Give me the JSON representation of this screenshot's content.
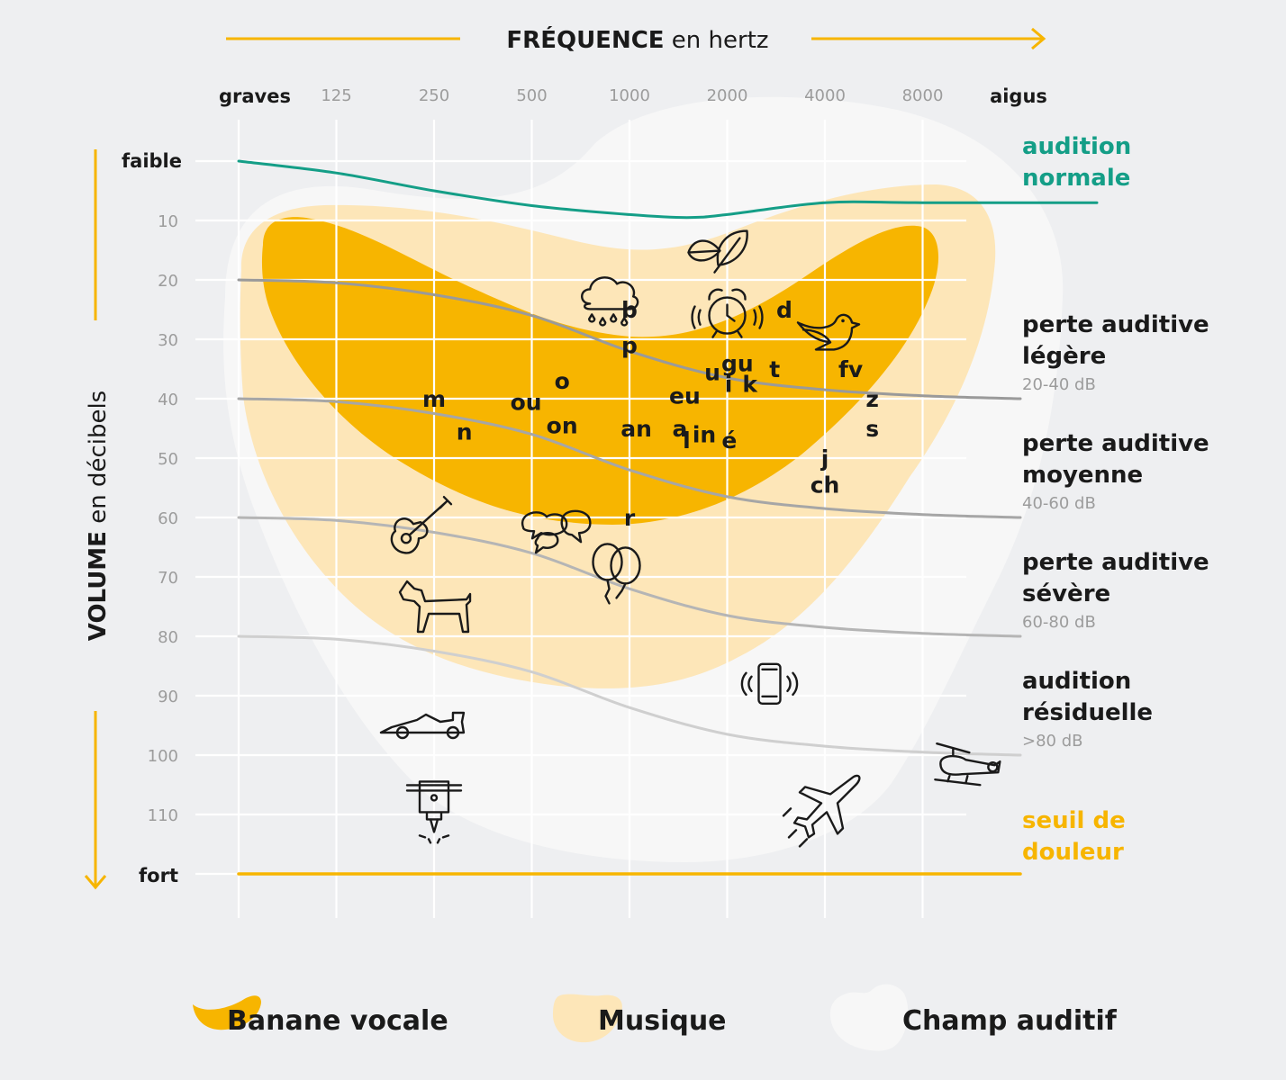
{
  "chart_data": {
    "type": "audiogram",
    "title": {
      "strong": "FRÉQUENCE",
      "light": " en hertz"
    },
    "y_title": {
      "strong": "VOLUME",
      "light": " en décibels"
    },
    "x_end_labels": {
      "left": "graves",
      "right": "aigus"
    },
    "x_ticks": [
      125,
      250,
      500,
      1000,
      2000,
      4000,
      8000
    ],
    "y_end_labels": {
      "top": "faible",
      "bottom": "fort"
    },
    "y_ticks": [
      10,
      20,
      30,
      40,
      50,
      60,
      70,
      80,
      90,
      100,
      110
    ],
    "ylim": [
      0,
      120
    ],
    "colors": {
      "banane": "#f7b500",
      "musique": "#fde6b8",
      "champ": "#f7f7f7",
      "normal": "#149e87",
      "douleur": "#f7b500",
      "grid": "#ffffff",
      "loss_lines": [
        "#9a9a9a",
        "#a6a6a6",
        "#b5b5b5",
        "#cfcfcf"
      ]
    },
    "zones": [
      {
        "key": "normal",
        "lines": [
          "audition",
          "normale"
        ],
        "range": "",
        "color": "#149e87"
      },
      {
        "key": "legere",
        "lines": [
          "perte auditive",
          "légère"
        ],
        "range": "20-40 dB",
        "color": "#1a1a1a"
      },
      {
        "key": "moyenne",
        "lines": [
          "perte auditive",
          "moyenne"
        ],
        "range": "40-60 dB",
        "color": "#1a1a1a"
      },
      {
        "key": "severe",
        "lines": [
          "perte auditive",
          "sévère"
        ],
        "range": "60-80 dB",
        "color": "#1a1a1a"
      },
      {
        "key": "residuelle",
        "lines": [
          "audition",
          "résiduelle"
        ],
        "range": ">80 dB",
        "color": "#1a1a1a"
      },
      {
        "key": "douleur",
        "lines": [
          "seuil de",
          "douleur"
        ],
        "range": "",
        "color": "#f7b500"
      }
    ],
    "series": [
      {
        "name": "audition normale",
        "x": [
          62.5,
          125,
          250,
          500,
          1000,
          1500,
          2000,
          4000,
          8000,
          16000
        ],
        "y": [
          0,
          2,
          5,
          7.5,
          9,
          9.5,
          9,
          7,
          7,
          7
        ]
      },
      {
        "name": "perte auditive légère",
        "x": [
          62.5,
          125,
          250,
          500,
          1000,
          2000,
          4000,
          8000,
          16000
        ],
        "y": [
          20,
          20.5,
          22.5,
          26,
          32,
          36.5,
          38.5,
          39.5,
          40
        ]
      },
      {
        "name": "perte auditive moyenne",
        "x": [
          62.5,
          125,
          250,
          500,
          1000,
          2000,
          4000,
          8000,
          16000
        ],
        "y": [
          40,
          40.5,
          42.5,
          46,
          52,
          56.5,
          58.5,
          59.5,
          60
        ]
      },
      {
        "name": "perte auditive sévère",
        "x": [
          62.5,
          125,
          250,
          500,
          1000,
          2000,
          4000,
          8000,
          16000
        ],
        "y": [
          60,
          60.5,
          62.5,
          66,
          72,
          76.5,
          78.5,
          79.5,
          80
        ]
      },
      {
        "name": "audition résiduelle",
        "x": [
          62.5,
          125,
          250,
          500,
          1000,
          2000,
          4000,
          8000,
          16000
        ],
        "y": [
          80,
          80.5,
          82.5,
          86,
          92,
          96.5,
          98.5,
          99.5,
          100
        ]
      },
      {
        "name": "seuil de douleur",
        "x": [
          62.5,
          16000
        ],
        "y": [
          120,
          120
        ]
      }
    ],
    "phonemes": [
      {
        "t": "b",
        "f": 1000,
        "db": 25
      },
      {
        "t": "p",
        "f": 1000,
        "db": 31
      },
      {
        "t": "d",
        "f": 3000,
        "db": 25
      },
      {
        "t": "gu",
        "f": 2150,
        "db": 34
      },
      {
        "t": "t",
        "f": 2800,
        "db": 35
      },
      {
        "t": "fv",
        "f": 4800,
        "db": 35
      },
      {
        "t": "u",
        "f": 1800,
        "db": 35.5
      },
      {
        "t": "i",
        "f": 2020,
        "db": 37.5
      },
      {
        "t": "k",
        "f": 2350,
        "db": 37.5
      },
      {
        "t": "o",
        "f": 620,
        "db": 37
      },
      {
        "t": "eu",
        "f": 1480,
        "db": 39.5
      },
      {
        "t": "z",
        "f": 5600,
        "db": 40
      },
      {
        "t": "m",
        "f": 250,
        "db": 40
      },
      {
        "t": "ou",
        "f": 480,
        "db": 40.5
      },
      {
        "t": "on",
        "f": 620,
        "db": 44.5
      },
      {
        "t": "an",
        "f": 1050,
        "db": 45
      },
      {
        "t": "a",
        "f": 1430,
        "db": 45
      },
      {
        "t": "s",
        "f": 5600,
        "db": 45
      },
      {
        "t": "in",
        "f": 1700,
        "db": 46
      },
      {
        "t": "n",
        "f": 310,
        "db": 45.5
      },
      {
        "t": "l",
        "f": 1500,
        "db": 47
      },
      {
        "t": "é",
        "f": 2030,
        "db": 47
      },
      {
        "t": "j",
        "f": 4000,
        "db": 50
      },
      {
        "t": "ch",
        "f": 4000,
        "db": 54.5
      },
      {
        "t": "r",
        "f": 1000,
        "db": 60
      }
    ],
    "sources": [
      {
        "name": "leaf-icon",
        "f": 1900,
        "db": 16
      },
      {
        "name": "rain-cloud-icon",
        "f": 870,
        "db": 24
      },
      {
        "name": "alarm-clock-icon",
        "f": 2000,
        "db": 26
      },
      {
        "name": "bird-icon",
        "f": 4000,
        "db": 29
      },
      {
        "name": "guitar-icon",
        "f": 230,
        "db": 62
      },
      {
        "name": "chat-bubbles-icon",
        "f": 600,
        "db": 62
      },
      {
        "name": "balloons-icon",
        "f": 900,
        "db": 69
      },
      {
        "name": "dog-icon",
        "f": 250,
        "db": 75
      },
      {
        "name": "phone-vibrating-icon",
        "f": 2700,
        "db": 88
      },
      {
        "name": "race-car-icon",
        "f": 230,
        "db": 95
      },
      {
        "name": "helicopter-icon",
        "f": 11000,
        "db": 102
      },
      {
        "name": "jackhammer-icon",
        "f": 250,
        "db": 109
      },
      {
        "name": "airplane-icon",
        "f": 4000,
        "db": 109
      }
    ],
    "legend": [
      {
        "label": "Banane vocale",
        "swatch": "banane"
      },
      {
        "label": "Musique",
        "swatch": "musique"
      },
      {
        "label": "Champ auditif",
        "swatch": "champ"
      }
    ],
    "grid": true
  }
}
